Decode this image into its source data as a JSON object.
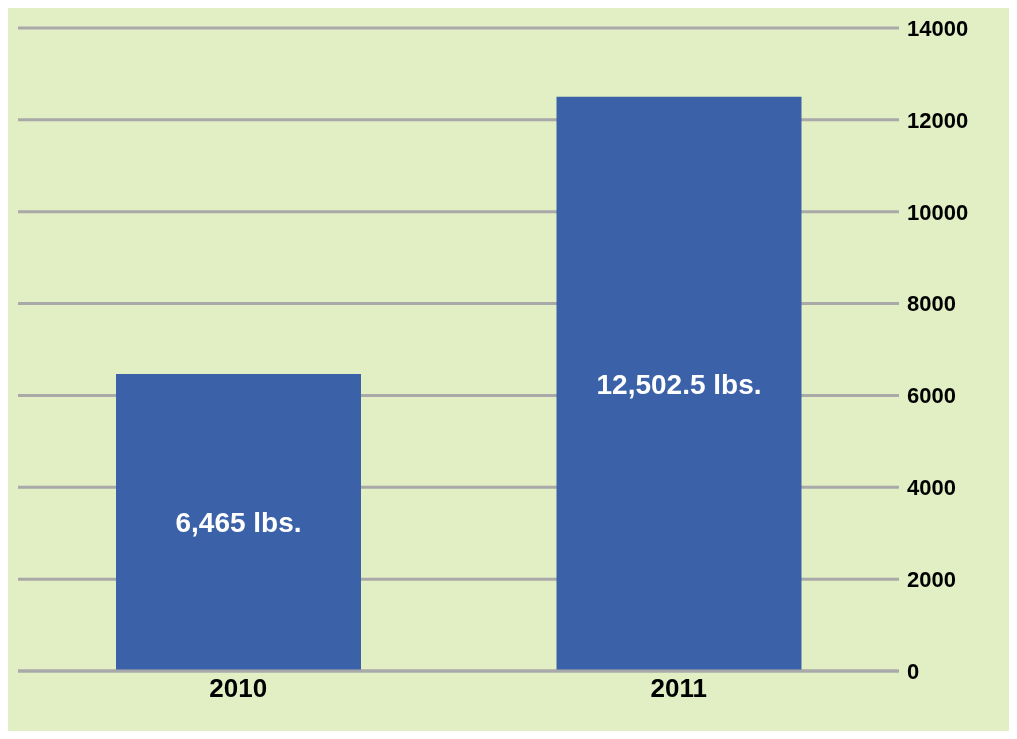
{
  "chart_data": {
    "type": "bar",
    "categories": [
      "2010",
      "2011"
    ],
    "values": [
      6465,
      12502.5
    ],
    "value_labels": [
      "6,465 lbs.",
      "12,502.5 lbs."
    ],
    "color": "#3b62a8",
    "ylim": [
      0,
      14000
    ],
    "yticks": [
      0,
      2000,
      4000,
      6000,
      8000,
      10000,
      12000,
      14000
    ],
    "grid": "y"
  }
}
